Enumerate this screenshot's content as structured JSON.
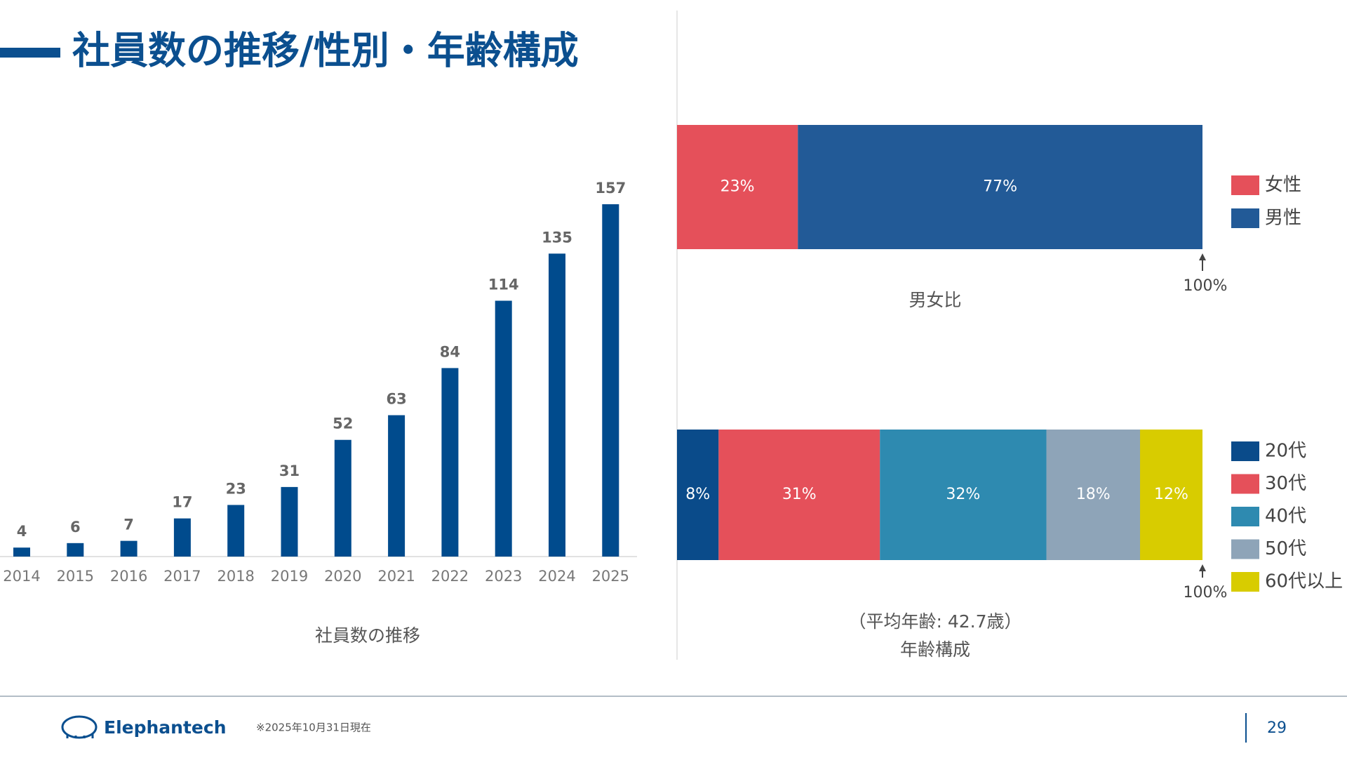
{
  "title": "社員数の推移/性別・年齢構成",
  "chart_data": [
    {
      "type": "bar",
      "title": "社員数の推移",
      "categories": [
        "2014",
        "2015",
        "2016",
        "2017",
        "2018",
        "2019",
        "2020",
        "2021",
        "2022",
        "2023",
        "2024",
        "2025"
      ],
      "values": [
        4,
        6,
        7,
        17,
        23,
        31,
        52,
        63,
        84,
        114,
        135,
        157
      ],
      "color": "#004b8d"
    },
    {
      "type": "stacked-bar",
      "title": "男女比",
      "end_label": "100%",
      "series": [
        {
          "name": "女性",
          "color": "#e5505a",
          "values": [
            23
          ],
          "value_labels": [
            "23%"
          ]
        },
        {
          "name": "男性",
          "color": "#225a97",
          "values": [
            77
          ],
          "value_labels": [
            "77%"
          ]
        }
      ]
    },
    {
      "type": "stacked-bar",
      "title": "年齢構成",
      "subtitle": "（平均年齢: 42.7歳）",
      "end_label": "100%",
      "series": [
        {
          "name": "20代",
          "color": "#0a4b8a",
          "values": [
            8
          ],
          "value_labels": [
            "8%"
          ]
        },
        {
          "name": "30代",
          "color": "#e5505a",
          "values": [
            31
          ],
          "value_labels": [
            "31%"
          ]
        },
        {
          "name": "40代",
          "color": "#2e8ab0",
          "values": [
            32
          ],
          "value_labels": [
            "32%"
          ]
        },
        {
          "name": "50代",
          "color": "#8ea4b8",
          "values": [
            18
          ],
          "value_labels": [
            "18%"
          ]
        },
        {
          "name": "60代以上",
          "color": "#d8cc00",
          "values": [
            12
          ],
          "value_labels": [
            "12%"
          ]
        }
      ]
    }
  ],
  "footer": {
    "logo": "Elephantech",
    "note": "※2025年10月31日現在",
    "page": "29"
  }
}
